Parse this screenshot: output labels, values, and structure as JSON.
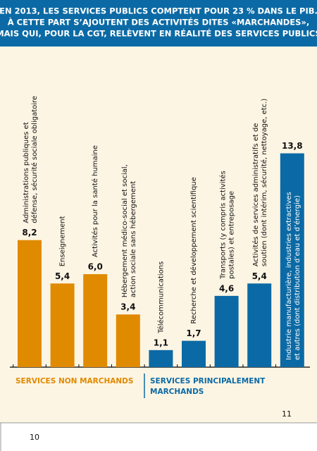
{
  "chart_data": {
    "type": "bar",
    "title": [
      "EN 2013, LES SERVICES PUBLICS COMPTENT POUR 23 % DANS LE PIB.",
      "À CETTE PART S’AJOUTENT DES ACTIVITÉS DITES «MARCHANDES»,",
      "MAIS QUI, POUR LA CGT, RELÈVENT EN RÉALITÉ DES SERVICES PUBLICS"
    ],
    "categories": [
      [
        "Administrations publiques et",
        "défense, sécurité sociale obligatoire"
      ],
      [
        "Enseignement"
      ],
      [
        "Activités pour la santé humaine"
      ],
      [
        "Hébergement médico-social et social,",
        "action sociale sans hébergement"
      ],
      [
        "Télécommunications"
      ],
      [
        "Recherche et développement scientifique"
      ],
      [
        "Transports (y compris activités",
        "postales) et entreposage"
      ],
      [
        "Activités de services administratifs et de",
        "soutien (dont intérim, sécurité, nettoyage, etc.)"
      ],
      [
        "Industrie manufacturière, industries extractives",
        "et autres (dont distribution d’eau et d’énergie)"
      ]
    ],
    "values": [
      8.2,
      5.4,
      6.0,
      3.4,
      1.1,
      1.7,
      4.6,
      5.4,
      13.8
    ],
    "value_labels": [
      "8,2",
      "5,4",
      "6,0",
      "3,4",
      "1,1",
      "1,7",
      "4,6",
      "5,4",
      "13,8"
    ],
    "bar_colors": [
      "#e08a00",
      "#e08a00",
      "#e08a00",
      "#e08a00",
      "#0b6aa5",
      "#0b6aa5",
      "#0b6aa5",
      "#0b6aa5",
      "#0b6aa5"
    ],
    "ylim": [
      0,
      14.6
    ],
    "group_labels": [
      {
        "lines": [
          "SERVICES NON MARCHANDS"
        ],
        "color": "#e08a00"
      },
      {
        "lines": [
          "SERVICES  PRINCIPALEMENT",
          "MARCHANDS"
        ],
        "color": "#0b6aa5"
      }
    ],
    "page_numbers": [
      "11",
      "10"
    ]
  }
}
